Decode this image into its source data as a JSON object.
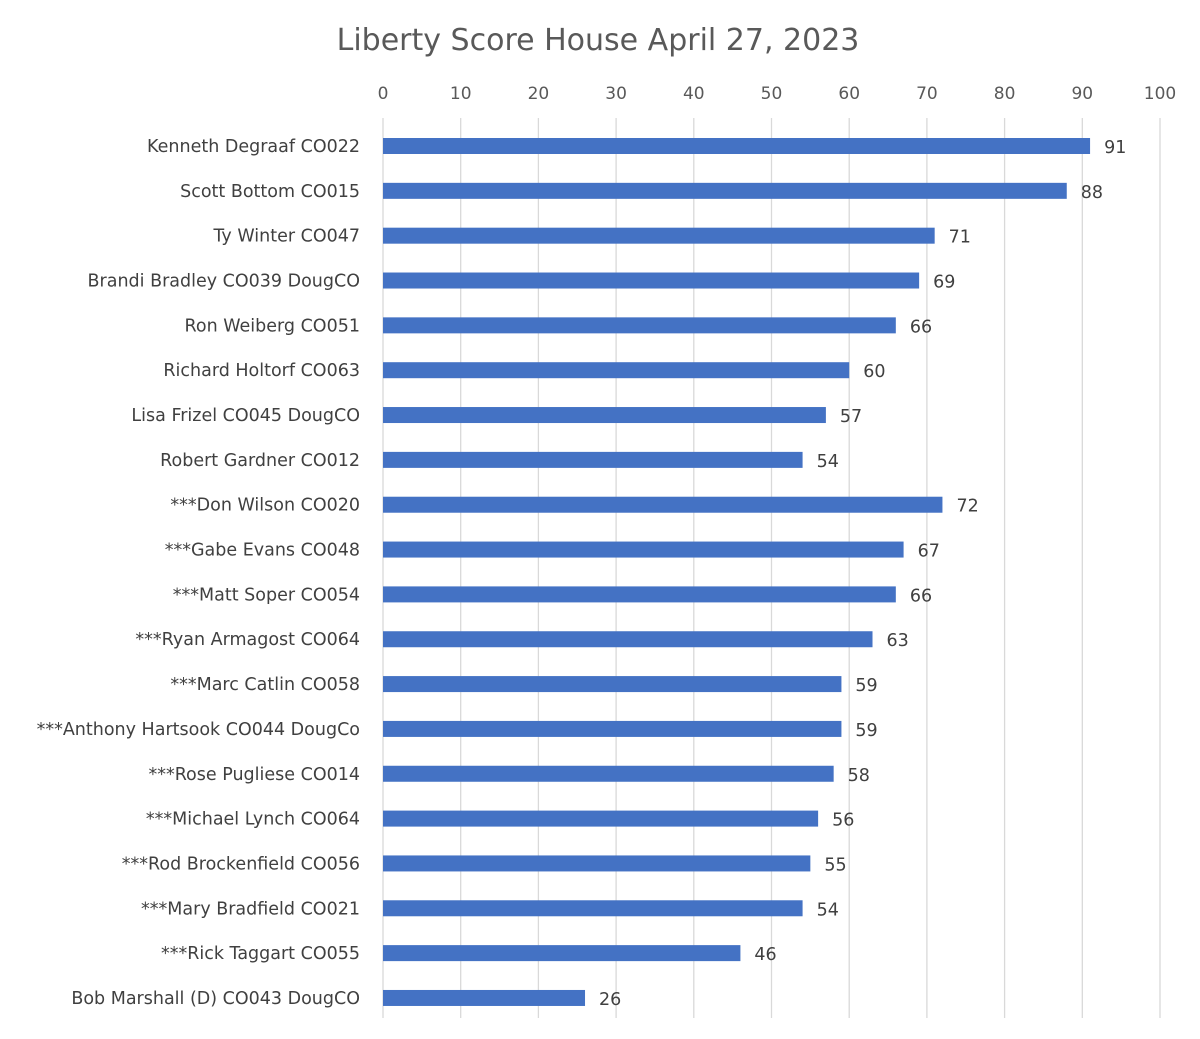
{
  "chart_data": {
    "type": "bar",
    "orientation": "horizontal",
    "title": "Liberty Score House April 27, 2023",
    "xlabel": "",
    "ylabel": "",
    "xlim": [
      0,
      100
    ],
    "x_ticks": [
      "0",
      "10",
      "20",
      "30",
      "40",
      "50",
      "60",
      "70",
      "80",
      "90",
      "100"
    ],
    "x_axis_position": "top",
    "grid": true,
    "legend": "none",
    "bar_color": "#4472C4",
    "data_labels": true,
    "categories": [
      "Kenneth Degraaf CO022",
      "Scott Bottom CO015",
      "Ty Winter CO047",
      "Brandi Bradley CO039 DougCO",
      "Ron Weiberg CO051",
      "Richard Holtorf CO063",
      "Lisa Frizel CO045 DougCO",
      "Robert Gardner CO012",
      "***Don Wilson CO020",
      "***Gabe Evans CO048",
      "***Matt Soper CO054",
      "***Ryan Armagost CO064",
      "***Marc Catlin CO058",
      "***Anthony Hartsook CO044 DougCo",
      "***Rose Pugliese CO014",
      "***Michael Lynch CO064",
      "***Rod Brockenfield CO056",
      "***Mary Bradfield CO021",
      "***Rick Taggart CO055",
      "Bob Marshall (D) CO043 DougCO"
    ],
    "values": [
      91,
      88,
      71,
      69,
      66,
      60,
      57,
      54,
      72,
      67,
      66,
      63,
      59,
      59,
      58,
      56,
      55,
      54,
      46,
      26
    ]
  }
}
